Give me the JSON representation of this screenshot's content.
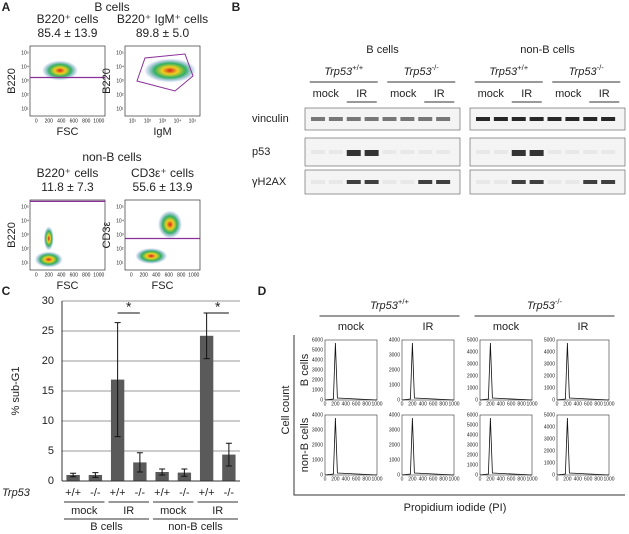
{
  "panel_a": {
    "label": "A",
    "group1": "B cells",
    "group2": "non-B cells",
    "plots": [
      {
        "title": "B220⁺ cells",
        "stat": "85.4 ± 13.9",
        "ylabel": "B220",
        "xlabel": "FSC",
        "xscale": "linear"
      },
      {
        "title": "B220⁺ IgM⁺ cells",
        "stat": "89.8 ± 5.0",
        "ylabel": "B220",
        "xlabel": "IgM",
        "xscale": "log"
      },
      {
        "title": "B220⁺ cells",
        "stat": "11.8 ± 7.3",
        "ylabel": "B220",
        "xlabel": "FSC",
        "xscale": "linear"
      },
      {
        "title": "CD3ε⁺ cells",
        "stat": "55.6 ± 13.9",
        "ylabel": "CD3ε",
        "xlabel": "FSC",
        "xscale": "linear"
      }
    ],
    "linear_ticks": [
      "0",
      "200",
      "400",
      "600",
      "800",
      "1000"
    ],
    "log_ticks": [
      "10¹",
      "10²",
      "10³",
      "10⁴",
      "10⁵"
    ]
  },
  "panel_b": {
    "label": "B",
    "groups": [
      "B cells",
      "non-B cells"
    ],
    "gene": "Trp53",
    "genotypes": [
      "+/+",
      "-/-"
    ],
    "treatments": [
      "mock",
      "IR"
    ],
    "rows": [
      "vinculin",
      "p53",
      "γH2AX"
    ]
  },
  "chart_data": {
    "type": "bar",
    "label": "C",
    "y_label": "% sub-G1",
    "gene": "Trp53",
    "categories": [
      "+/+",
      "-/-",
      "+/+",
      "-/-",
      "+/+",
      "-/-",
      "+/+",
      "-/-"
    ],
    "treatments": [
      "mock",
      "IR",
      "mock",
      "IR"
    ],
    "groups": [
      "B cells",
      "non-B cells"
    ],
    "values": [
      1.0,
      1.0,
      16.9,
      3.1,
      1.5,
      1.4,
      24.2,
      4.4
    ],
    "errors": [
      0.3,
      0.4,
      9.5,
      1.6,
      0.5,
      0.6,
      3.8,
      1.9
    ],
    "color": "#5a5a5a",
    "ylim": [
      0,
      30
    ],
    "yticks": [
      0,
      5,
      10,
      15,
      20,
      25,
      30
    ],
    "grid": true,
    "annotations": [
      "*",
      "*"
    ]
  },
  "panel_d": {
    "label": "D",
    "gene": "Trp53",
    "genotypes": [
      "+/+",
      "-/-"
    ],
    "treatments": [
      "mock",
      "IR",
      "mock",
      "IR"
    ],
    "rows": [
      "B cells",
      "non-B cells"
    ],
    "y_label": "Cell count",
    "x_label": "Propidium iodide (PI)",
    "xticks": [
      "0",
      "200",
      "400",
      "600",
      "800",
      "1000"
    ],
    "yticks": [
      [
        [
          "0",
          "1000",
          "2000",
          "3000",
          "4000",
          "5000",
          "6000"
        ],
        [
          "0",
          "1000",
          "2000",
          "3000",
          "4000"
        ],
        [
          "0",
          "1000",
          "2000",
          "3000",
          "4000",
          "5000"
        ],
        [
          "0",
          "1000",
          "2000",
          "3000",
          "4000",
          "5000"
        ]
      ],
      [
        [
          "0",
          "1000",
          "2000",
          "3000",
          "4000"
        ],
        [
          "0",
          "1000",
          "2000",
          "3000",
          "4000"
        ],
        [
          "0",
          "1000",
          "2000",
          "3000",
          "4000",
          "5000",
          "6000"
        ],
        [
          "0",
          "1000",
          "2000",
          "3000",
          "4000",
          "5000"
        ]
      ]
    ]
  }
}
